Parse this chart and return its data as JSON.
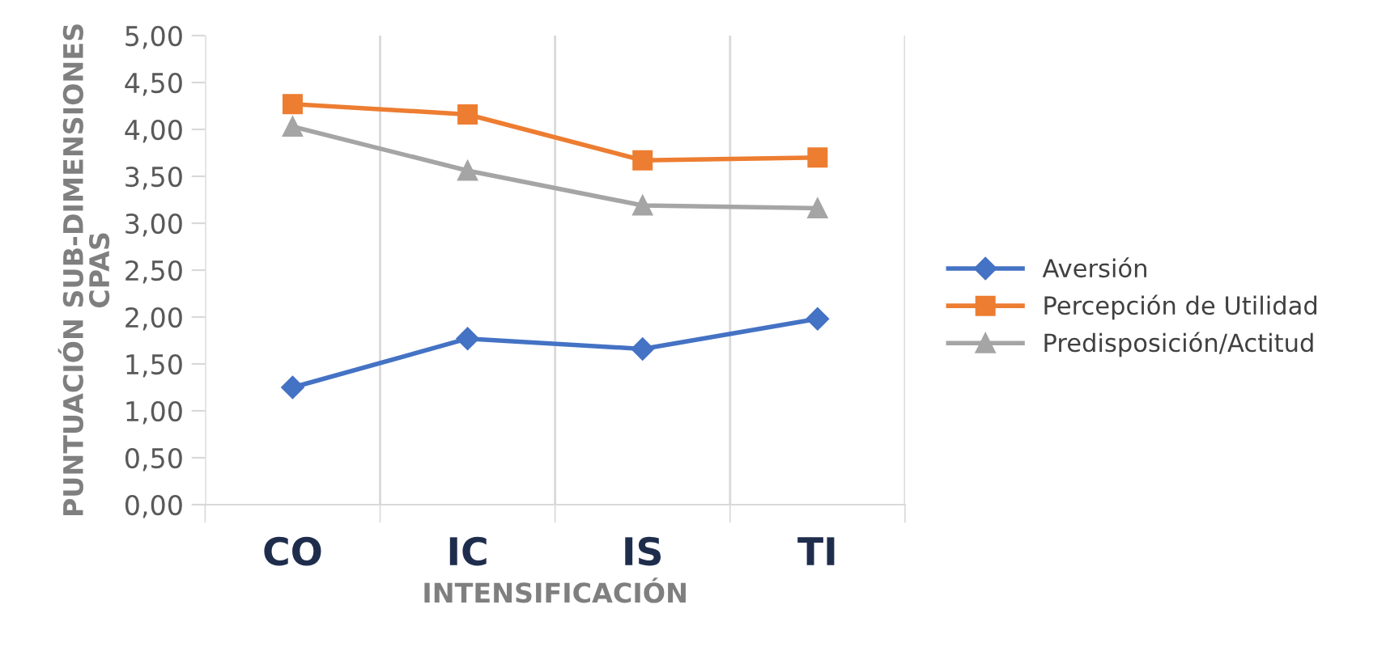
{
  "chart_data": {
    "type": "line",
    "xlabel": "INTENSIFICACIÓN",
    "ylabel": "PUNTUACIÓN SUB-DIMENSIONES\nCPAS",
    "categories": [
      "CO",
      "IC",
      "IS",
      "TI"
    ],
    "series": [
      {
        "name": "Aversión",
        "color": "#4472c4",
        "marker": "diamond",
        "values": [
          1.25,
          1.77,
          1.66,
          1.98
        ]
      },
      {
        "name": "Percepción de Utilidad",
        "color": "#ed7d31",
        "marker": "square",
        "values": [
          4.27,
          4.16,
          3.67,
          3.7
        ]
      },
      {
        "name": "Predisposición/Actitud",
        "color": "#a5a5a5",
        "marker": "triangle",
        "values": [
          4.03,
          3.56,
          3.19,
          3.16
        ]
      }
    ],
    "ylim": [
      0,
      5
    ],
    "yticks": [
      {
        "value": 0,
        "label": "0,00"
      },
      {
        "value": 0.5,
        "label": "0,50"
      },
      {
        "value": 1,
        "label": "1,00"
      },
      {
        "value": 1.5,
        "label": "1,50"
      },
      {
        "value": 2,
        "label": "2,00"
      },
      {
        "value": 2.5,
        "label": "2,50"
      },
      {
        "value": 3,
        "label": "3,00"
      },
      {
        "value": 3.5,
        "label": "3,50"
      },
      {
        "value": 4,
        "label": "4,00"
      },
      {
        "value": 4.5,
        "label": "4,50"
      },
      {
        "value": 5,
        "label": "5,00"
      }
    ],
    "grid": "x",
    "legend": "right",
    "line_style": "solid"
  }
}
